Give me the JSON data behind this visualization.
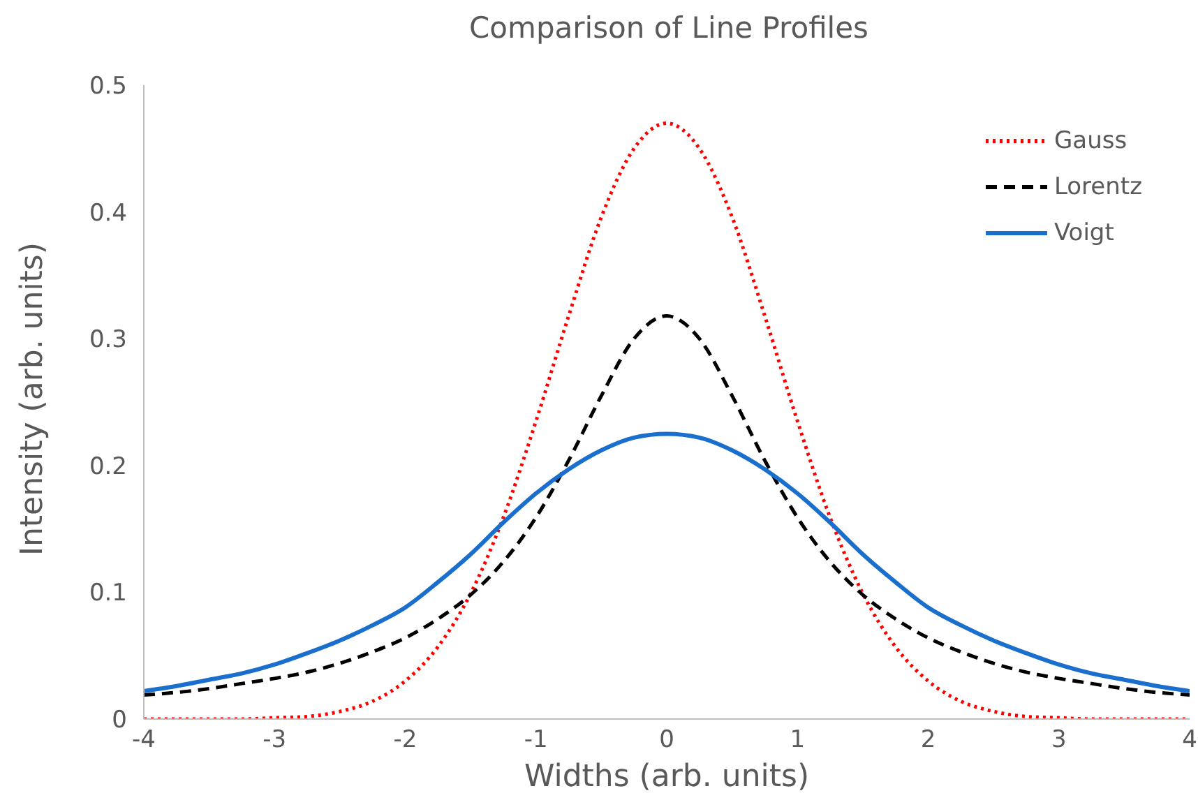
{
  "chart_data": {
    "type": "line",
    "title": "Comparison of Line Profiles",
    "xlabel": "Widths (arb. units)",
    "ylabel": "Intensity (arb. units)",
    "x": [
      -4,
      -3.75,
      -3.5,
      -3.25,
      -3,
      -2.75,
      -2.5,
      -2.25,
      -2,
      -1.75,
      -1.5,
      -1.25,
      -1,
      -0.75,
      -0.5,
      -0.25,
      0,
      0.25,
      0.5,
      0.75,
      1,
      1.25,
      1.5,
      1.75,
      2,
      2.25,
      2.5,
      2.75,
      3,
      3.25,
      3.5,
      3.75,
      4
    ],
    "series": [
      {
        "name": "Gauss",
        "color": "#ff0000",
        "line_style": "dotted",
        "values": [
          0,
          0,
          0,
          0,
          0.001,
          0.002,
          0.006,
          0.014,
          0.03,
          0.057,
          0.099,
          0.159,
          0.235,
          0.318,
          0.396,
          0.45,
          0.47,
          0.45,
          0.396,
          0.318,
          0.235,
          0.159,
          0.099,
          0.057,
          0.03,
          0.014,
          0.006,
          0.002,
          0.001,
          0,
          0,
          0,
          0
        ]
      },
      {
        "name": "Lorentz",
        "color": "#000000",
        "line_style": "dashed",
        "values": [
          0.019,
          0.021,
          0.024,
          0.028,
          0.032,
          0.037,
          0.044,
          0.053,
          0.064,
          0.079,
          0.098,
          0.124,
          0.159,
          0.204,
          0.255,
          0.3,
          0.318,
          0.3,
          0.255,
          0.204,
          0.159,
          0.124,
          0.098,
          0.079,
          0.064,
          0.053,
          0.044,
          0.037,
          0.032,
          0.028,
          0.024,
          0.021,
          0.019
        ]
      },
      {
        "name": "Voigt",
        "color": "#1a6fcc",
        "line_style": "solid",
        "values": [
          0.022,
          0.026,
          0.031,
          0.036,
          0.043,
          0.052,
          0.062,
          0.074,
          0.088,
          0.108,
          0.13,
          0.155,
          0.178,
          0.197,
          0.212,
          0.222,
          0.225,
          0.222,
          0.212,
          0.197,
          0.178,
          0.155,
          0.13,
          0.108,
          0.088,
          0.074,
          0.062,
          0.052,
          0.043,
          0.036,
          0.031,
          0.026,
          0.022
        ]
      }
    ],
    "xlim": [
      -4,
      4
    ],
    "xticks": [
      -4,
      -3,
      -2,
      -1,
      0,
      1,
      2,
      3,
      4
    ],
    "ylim": [
      0,
      0.5
    ],
    "yticks": [
      0,
      0.1,
      0.2,
      0.3,
      0.4,
      0.5
    ],
    "grid": false,
    "legend": "top right",
    "marker": "none"
  }
}
